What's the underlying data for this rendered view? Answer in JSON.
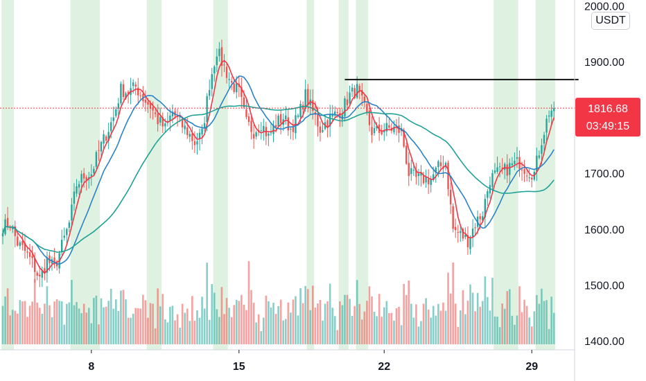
{
  "chart_data": {
    "type": "candlestick",
    "symbol_unit": "USDT",
    "y_axis": {
      "range": [
        1395,
        2005
      ],
      "ticks": [
        "1400.00",
        "1500.00",
        "1600.00",
        "1700.00",
        "1800.00",
        "1900.00",
        "2000.00"
      ]
    },
    "x_axis": {
      "ticks": [
        {
          "label": "8",
          "index": 36
        },
        {
          "label": "15",
          "index": 96
        },
        {
          "label": "22",
          "index": 155
        },
        {
          "label": "29",
          "index": 215
        }
      ]
    },
    "last_price": {
      "value": 1816.68,
      "label": "1816.68",
      "countdown": "03:49:15"
    },
    "resistance_level": {
      "value": 1868,
      "from_index": 139,
      "to_index": 234
    },
    "anchors": [
      [
        0,
        1605
      ],
      [
        3,
        1610
      ],
      [
        6,
        1575
      ],
      [
        9,
        1560
      ],
      [
        12,
        1540
      ],
      [
        15,
        1510
      ],
      [
        18,
        1545
      ],
      [
        21,
        1530
      ],
      [
        24,
        1570
      ],
      [
        27,
        1610
      ],
      [
        30,
        1680
      ],
      [
        33,
        1695
      ],
      [
        36,
        1700
      ],
      [
        39,
        1740
      ],
      [
        42,
        1770
      ],
      [
        45,
        1800
      ],
      [
        48,
        1850
      ],
      [
        51,
        1845
      ],
      [
        54,
        1855
      ],
      [
        57,
        1835
      ],
      [
        60,
        1820
      ],
      [
        63,
        1795
      ],
      [
        66,
        1780
      ],
      [
        69,
        1810
      ],
      [
        72,
        1790
      ],
      [
        75,
        1775
      ],
      [
        78,
        1755
      ],
      [
        81,
        1770
      ],
      [
        84,
        1860
      ],
      [
        87,
        1920
      ],
      [
        90,
        1890
      ],
      [
        93,
        1860
      ],
      [
        96,
        1845
      ],
      [
        99,
        1790
      ],
      [
        102,
        1775
      ],
      [
        105,
        1790
      ],
      [
        108,
        1765
      ],
      [
        111,
        1790
      ],
      [
        114,
        1800
      ],
      [
        117,
        1780
      ],
      [
        120,
        1800
      ],
      [
        123,
        1840
      ],
      [
        126,
        1810
      ],
      [
        129,
        1780
      ],
      [
        132,
        1795
      ],
      [
        135,
        1805
      ],
      [
        138,
        1815
      ],
      [
        141,
        1840
      ],
      [
        144,
        1850
      ],
      [
        147,
        1815
      ],
      [
        150,
        1775
      ],
      [
        153,
        1775
      ],
      [
        156,
        1780
      ],
      [
        159,
        1780
      ],
      [
        162,
        1775
      ],
      [
        165,
        1700
      ],
      [
        168,
        1690
      ],
      [
        171,
        1690
      ],
      [
        174,
        1690
      ],
      [
        177,
        1710
      ],
      [
        180,
        1720
      ],
      [
        183,
        1600
      ],
      [
        186,
        1590
      ],
      [
        189,
        1580
      ],
      [
        192,
        1610
      ],
      [
        195,
        1630
      ],
      [
        198,
        1690
      ],
      [
        201,
        1700
      ],
      [
        204,
        1705
      ],
      [
        207,
        1715
      ],
      [
        210,
        1720
      ],
      [
        213,
        1705
      ],
      [
        216,
        1700
      ],
      [
        219,
        1760
      ],
      [
        222,
        1810
      ],
      [
        224,
        1817
      ]
    ],
    "candle_count": 225,
    "green_zones": [
      [
        0,
        5
      ],
      [
        28,
        40
      ],
      [
        59,
        65
      ],
      [
        86,
        92
      ],
      [
        124,
        127
      ],
      [
        137,
        141
      ],
      [
        144,
        149
      ],
      [
        200,
        210
      ],
      [
        217,
        225
      ]
    ],
    "volume": {
      "range": [
        0,
        400
      ],
      "series": "per-candle volume bars"
    },
    "moving_averages": [
      {
        "color": "#f23645",
        "period": 5
      },
      {
        "color": "#2a82c6",
        "period": 14
      },
      {
        "color": "#1ea295",
        "period": 40
      }
    ],
    "colors": {
      "up": "#26a69a",
      "down": "#ef5350",
      "zone": "#dff1e1",
      "ma_fast": "#f23645",
      "ma_mid": "#2a82c6",
      "ma_slow": "#1ea295",
      "price_line": "#f23645",
      "resistance": "#000000"
    }
  }
}
